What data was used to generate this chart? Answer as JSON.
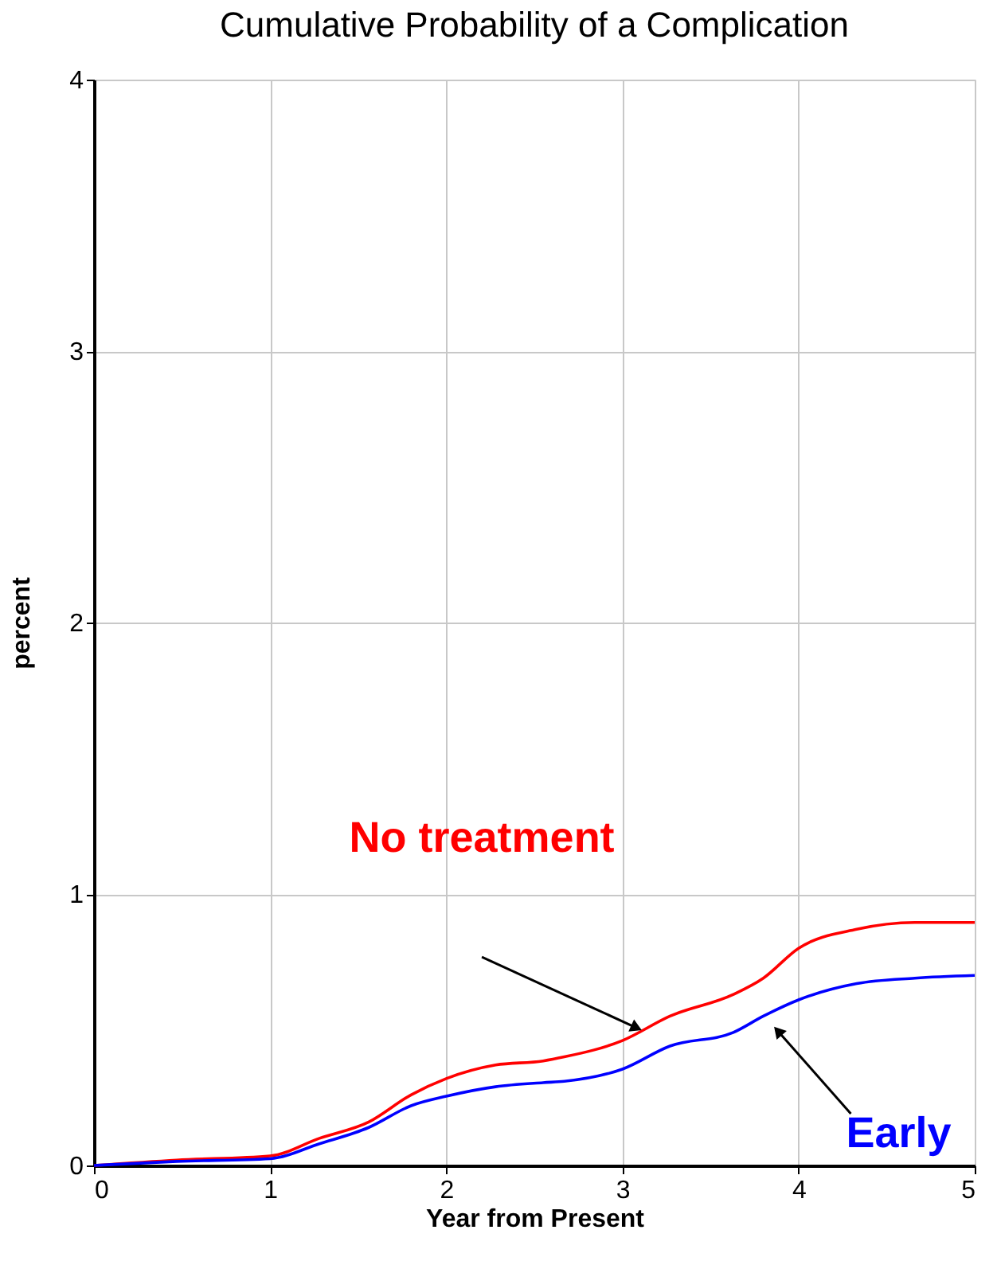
{
  "chart_data": {
    "type": "line",
    "title": "Cumulative Probability of a Complication",
    "xlabel": "Year from Present",
    "ylabel": "percent",
    "series": [
      {
        "color": "#ff0000",
        "x": [
          0,
          0.47,
          1,
          1.28,
          1.56,
          1.8,
          2,
          2.28,
          2.55,
          2.67,
          3,
          3.27,
          3.63,
          3.8,
          4,
          4.33,
          4.66,
          5
        ],
        "values": [
          0,
          0.02,
          0.035,
          0.1,
          0.16,
          0.26,
          0.32,
          0.37,
          0.385,
          0.4,
          0.46,
          0.55,
          0.63,
          0.69,
          0.8,
          0.87,
          0.895,
          0.895
        ]
      },
      {
        "color": "#0000ff",
        "x": [
          0,
          0.47,
          1,
          1.28,
          1.56,
          1.8,
          2,
          2.28,
          2.55,
          2.67,
          3,
          3.27,
          3.63,
          3.8,
          4,
          4.33,
          4.66,
          5
        ],
        "values": [
          0,
          0.015,
          0.025,
          0.08,
          0.14,
          0.22,
          0.255,
          0.29,
          0.305,
          0.31,
          0.355,
          0.44,
          0.49,
          0.55,
          0.61,
          0.67,
          0.69,
          0.7
        ]
      }
    ],
    "annotations": [
      "No treatment",
      "Early"
    ],
    "xlim": [
      0,
      5
    ],
    "ylim": [
      0,
      4
    ],
    "xticks": [
      0,
      1,
      2,
      3,
      4,
      5
    ],
    "yticks": [
      0,
      1,
      2,
      3,
      4
    ],
    "grid": true,
    "line_style": "solid",
    "marker": "none"
  }
}
